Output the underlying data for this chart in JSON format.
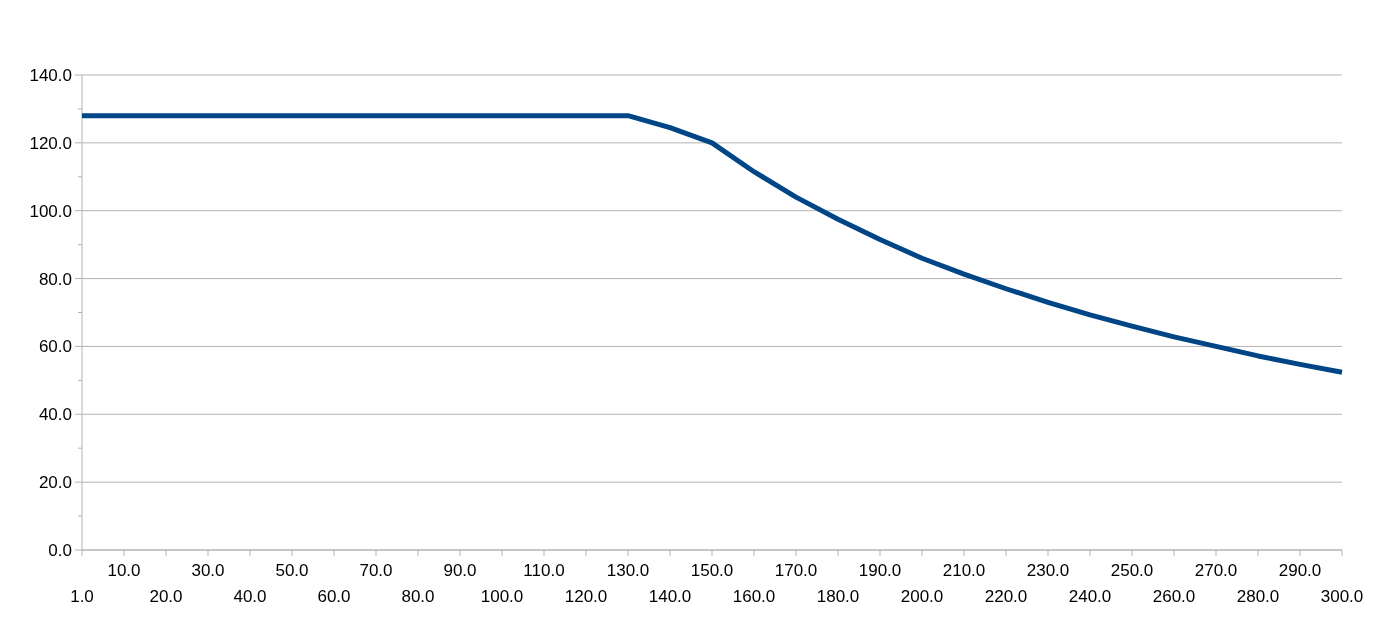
{
  "chart_data": {
    "type": "line",
    "categories": [
      "1.0",
      "10.0",
      "20.0",
      "30.0",
      "40.0",
      "50.0",
      "60.0",
      "70.0",
      "80.0",
      "90.0",
      "100.0",
      "110.0",
      "120.0",
      "130.0",
      "140.0",
      "150.0",
      "160.0",
      "170.0",
      "180.0",
      "190.0",
      "200.0",
      "210.0",
      "220.0",
      "230.0",
      "240.0",
      "250.0",
      "260.0",
      "270.0",
      "280.0",
      "290.0",
      "300.0"
    ],
    "series": [
      {
        "color": "#004586",
        "values": [
          128,
          128,
          128,
          128,
          128,
          128,
          128,
          128,
          128,
          128,
          128,
          128,
          128,
          128,
          124.5,
          120,
          111.5,
          104,
          97.5,
          91.5,
          86,
          81.3,
          77,
          73,
          69.3,
          66,
          62.8,
          60,
          57.2,
          54.7,
          52.4
        ]
      }
    ],
    "ylim": [
      0,
      140
    ],
    "yticks": [
      {
        "value": 0,
        "label": "0.0"
      },
      {
        "value": 20,
        "label": "20.0"
      },
      {
        "value": 40,
        "label": "40.0"
      },
      {
        "value": 60,
        "label": "60.0"
      },
      {
        "value": 80,
        "label": "80.0"
      },
      {
        "value": 100,
        "label": "100.0"
      },
      {
        "value": 120,
        "label": "120.0"
      },
      {
        "value": 140,
        "label": "140.0"
      }
    ],
    "grid": "y",
    "marker": "none",
    "line_style": "solid"
  }
}
